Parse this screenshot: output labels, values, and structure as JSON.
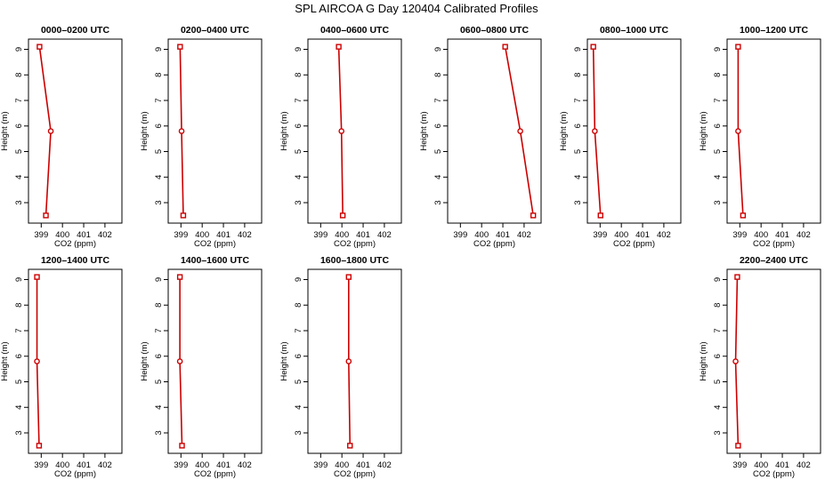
{
  "figure": {
    "title": "SPL AIRCOA G  Day 120404  Calibrated Profiles"
  },
  "chart_data": [
    {
      "type": "line",
      "title": "0000–0200 UTC",
      "xlabel": "CO2 (ppm)",
      "ylabel": "Height (m)",
      "xlim": [
        398.4,
        402.8
      ],
      "ylim": [
        2.2,
        9.4
      ],
      "x_ticks": [
        "399",
        "400",
        "401",
        "402"
      ],
      "y_ticks": [
        "3",
        "4",
        "5",
        "6",
        "7",
        "8",
        "9"
      ],
      "color": "#cc0000",
      "points": [
        {
          "x": 398.92,
          "y": 9.1
        },
        {
          "x": 399.45,
          "y": 5.8
        },
        {
          "x": 399.22,
          "y": 2.5
        }
      ]
    },
    {
      "type": "line",
      "title": "0200–0400 UTC",
      "xlabel": "CO2 (ppm)",
      "ylabel": "Height (m)",
      "xlim": [
        398.4,
        402.8
      ],
      "ylim": [
        2.2,
        9.4
      ],
      "x_ticks": [
        "399",
        "400",
        "401",
        "402"
      ],
      "y_ticks": [
        "3",
        "4",
        "5",
        "6",
        "7",
        "8",
        "9"
      ],
      "color": "#cc0000",
      "points": [
        {
          "x": 398.96,
          "y": 9.1
        },
        {
          "x": 399.03,
          "y": 5.8
        },
        {
          "x": 399.11,
          "y": 2.5
        }
      ]
    },
    {
      "type": "line",
      "title": "0400–0600 UTC",
      "xlabel": "CO2 (ppm)",
      "ylabel": "Height (m)",
      "xlim": [
        398.4,
        402.8
      ],
      "ylim": [
        2.2,
        9.4
      ],
      "x_ticks": [
        "399",
        "400",
        "401",
        "402"
      ],
      "y_ticks": [
        "3",
        "4",
        "5",
        "6",
        "7",
        "8",
        "9"
      ],
      "color": "#cc0000",
      "points": [
        {
          "x": 399.85,
          "y": 9.1
        },
        {
          "x": 399.98,
          "y": 5.8
        },
        {
          "x": 400.04,
          "y": 2.5
        }
      ]
    },
    {
      "type": "line",
      "title": "0600–0800 UTC",
      "xlabel": "CO2 (ppm)",
      "ylabel": "Height (m)",
      "xlim": [
        398.4,
        402.8
      ],
      "ylim": [
        2.2,
        9.4
      ],
      "x_ticks": [
        "399",
        "400",
        "401",
        "402"
      ],
      "y_ticks": [
        "3",
        "4",
        "5",
        "6",
        "7",
        "8",
        "9"
      ],
      "color": "#cc0000",
      "points": [
        {
          "x": 401.11,
          "y": 9.1
        },
        {
          "x": 401.82,
          "y": 5.8
        },
        {
          "x": 402.43,
          "y": 2.5
        }
      ]
    },
    {
      "type": "line",
      "title": "0800–1000 UTC",
      "xlabel": "CO2 (ppm)",
      "ylabel": "Height (m)",
      "xlim": [
        398.4,
        402.8
      ],
      "ylim": [
        2.2,
        9.4
      ],
      "x_ticks": [
        "399",
        "400",
        "401",
        "402"
      ],
      "y_ticks": [
        "3",
        "4",
        "5",
        "6",
        "7",
        "8",
        "9"
      ],
      "color": "#cc0000",
      "points": [
        {
          "x": 398.68,
          "y": 9.1
        },
        {
          "x": 398.75,
          "y": 5.8
        },
        {
          "x": 399.02,
          "y": 2.5
        }
      ]
    },
    {
      "type": "line",
      "title": "1000–1200 UTC",
      "xlabel": "CO2 (ppm)",
      "ylabel": "Height (m)",
      "xlim": [
        398.4,
        402.8
      ],
      "ylim": [
        2.2,
        9.4
      ],
      "x_ticks": [
        "399",
        "400",
        "401",
        "402"
      ],
      "y_ticks": [
        "3",
        "4",
        "5",
        "6",
        "7",
        "8",
        "9"
      ],
      "color": "#cc0000",
      "points": [
        {
          "x": 398.92,
          "y": 9.1
        },
        {
          "x": 398.92,
          "y": 5.8
        },
        {
          "x": 399.15,
          "y": 2.5
        }
      ]
    },
    {
      "type": "line",
      "title": "1200–1400 UTC",
      "xlabel": "CO2 (ppm)",
      "ylabel": "Height (m)",
      "xlim": [
        398.4,
        402.8
      ],
      "ylim": [
        2.2,
        9.4
      ],
      "x_ticks": [
        "399",
        "400",
        "401",
        "402"
      ],
      "y_ticks": [
        "3",
        "4",
        "5",
        "6",
        "7",
        "8",
        "9"
      ],
      "color": "#cc0000",
      "points": [
        {
          "x": 398.8,
          "y": 9.1
        },
        {
          "x": 398.8,
          "y": 5.8
        },
        {
          "x": 398.9,
          "y": 2.5
        }
      ]
    },
    {
      "type": "line",
      "title": "1400–1600 UTC",
      "xlabel": "CO2 (ppm)",
      "ylabel": "Height (m)",
      "xlim": [
        398.4,
        402.8
      ],
      "ylim": [
        2.2,
        9.4
      ],
      "x_ticks": [
        "399",
        "400",
        "401",
        "402"
      ],
      "y_ticks": [
        "3",
        "4",
        "5",
        "6",
        "7",
        "8",
        "9"
      ],
      "color": "#cc0000",
      "points": [
        {
          "x": 398.95,
          "y": 9.1
        },
        {
          "x": 398.95,
          "y": 5.8
        },
        {
          "x": 399.05,
          "y": 2.5
        }
      ]
    },
    {
      "type": "line",
      "title": "1600–1800 UTC",
      "xlabel": "CO2 (ppm)",
      "ylabel": "Height (m)",
      "xlim": [
        398.4,
        402.8
      ],
      "ylim": [
        2.2,
        9.4
      ],
      "x_ticks": [
        "399",
        "400",
        "401",
        "402"
      ],
      "y_ticks": [
        "3",
        "4",
        "5",
        "6",
        "7",
        "8",
        "9"
      ],
      "color": "#cc0000",
      "points": [
        {
          "x": 400.32,
          "y": 9.1
        },
        {
          "x": 400.32,
          "y": 5.8
        },
        {
          "x": 400.38,
          "y": 2.5
        }
      ]
    },
    {
      "type": "line",
      "title": "2200–2400 UTC",
      "xlabel": "CO2 (ppm)",
      "ylabel": "Height (m)",
      "xlim": [
        398.4,
        402.8
      ],
      "ylim": [
        2.2,
        9.4
      ],
      "x_ticks": [
        "399",
        "400",
        "401",
        "402"
      ],
      "y_ticks": [
        "3",
        "4",
        "5",
        "6",
        "7",
        "8",
        "9"
      ],
      "color": "#cc0000",
      "points": [
        {
          "x": 398.88,
          "y": 9.1
        },
        {
          "x": 398.8,
          "y": 5.8
        },
        {
          "x": 398.92,
          "y": 2.5
        }
      ]
    }
  ]
}
